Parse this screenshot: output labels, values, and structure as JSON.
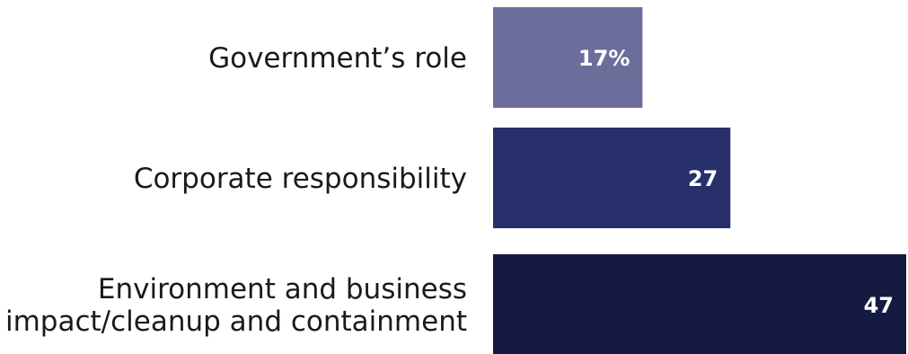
{
  "chart_data": {
    "type": "bar",
    "orientation": "horizontal",
    "categories": [
      "Government’s role",
      "Corporate responsibility",
      "Environment and business impact/cleanup and containment"
    ],
    "category_lines": [
      [
        "Government’s role"
      ],
      [
        "Corporate responsibility"
      ],
      [
        "Environment and business",
        "impact/cleanup and containment"
      ]
    ],
    "values": [
      17,
      27,
      47
    ],
    "value_labels": [
      "17%",
      "27",
      "47"
    ],
    "colors": [
      "#6b6e9a",
      "#27306b",
      "#141a40"
    ],
    "xlim": [
      0,
      47
    ],
    "grid": false,
    "legend": "none"
  }
}
